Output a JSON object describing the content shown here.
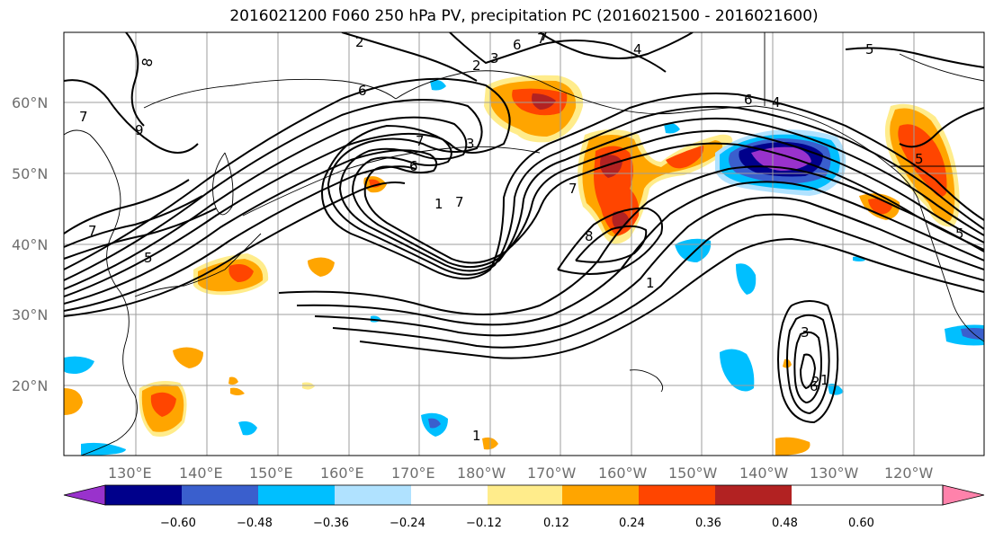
{
  "title": "2016021200 F060 250 hPa PV, precipitation PC (2016021500 - 2016021600)",
  "lat_labels": [
    "60°N",
    "50°N",
    "40°N",
    "30°N",
    "20°N"
  ],
  "lon_labels": [
    "130°E",
    "140°E",
    "150°E",
    "160°E",
    "170°E",
    "180°W",
    "170°W",
    "160°W",
    "150°W",
    "140°W",
    "130°W",
    "120°W"
  ],
  "colorbar": {
    "colors": [
      "#9932cc",
      "#00008b",
      "#3a5fcd",
      "#00bfff",
      "#b0e2ff",
      "#ffffff",
      "#ffec8b",
      "#ffa500",
      "#ff4500",
      "#b22222",
      "#ff82ab"
    ],
    "tick_labels": [
      "−0.60",
      "−0.48",
      "−0.36",
      "−0.24",
      "−0.12",
      "0.12",
      "0.24",
      "0.36",
      "0.48",
      "0.60"
    ]
  },
  "pv_contour_labels": [
    "8",
    "7",
    "9",
    "2",
    "6",
    "7",
    "4",
    "5",
    "2",
    "3",
    "6",
    "7",
    "5",
    "1",
    "7",
    "6",
    "7",
    "3",
    "6",
    "4",
    "1",
    "5",
    "7",
    "8",
    "1",
    "6",
    "5",
    "3",
    "7",
    "2",
    "1"
  ]
}
